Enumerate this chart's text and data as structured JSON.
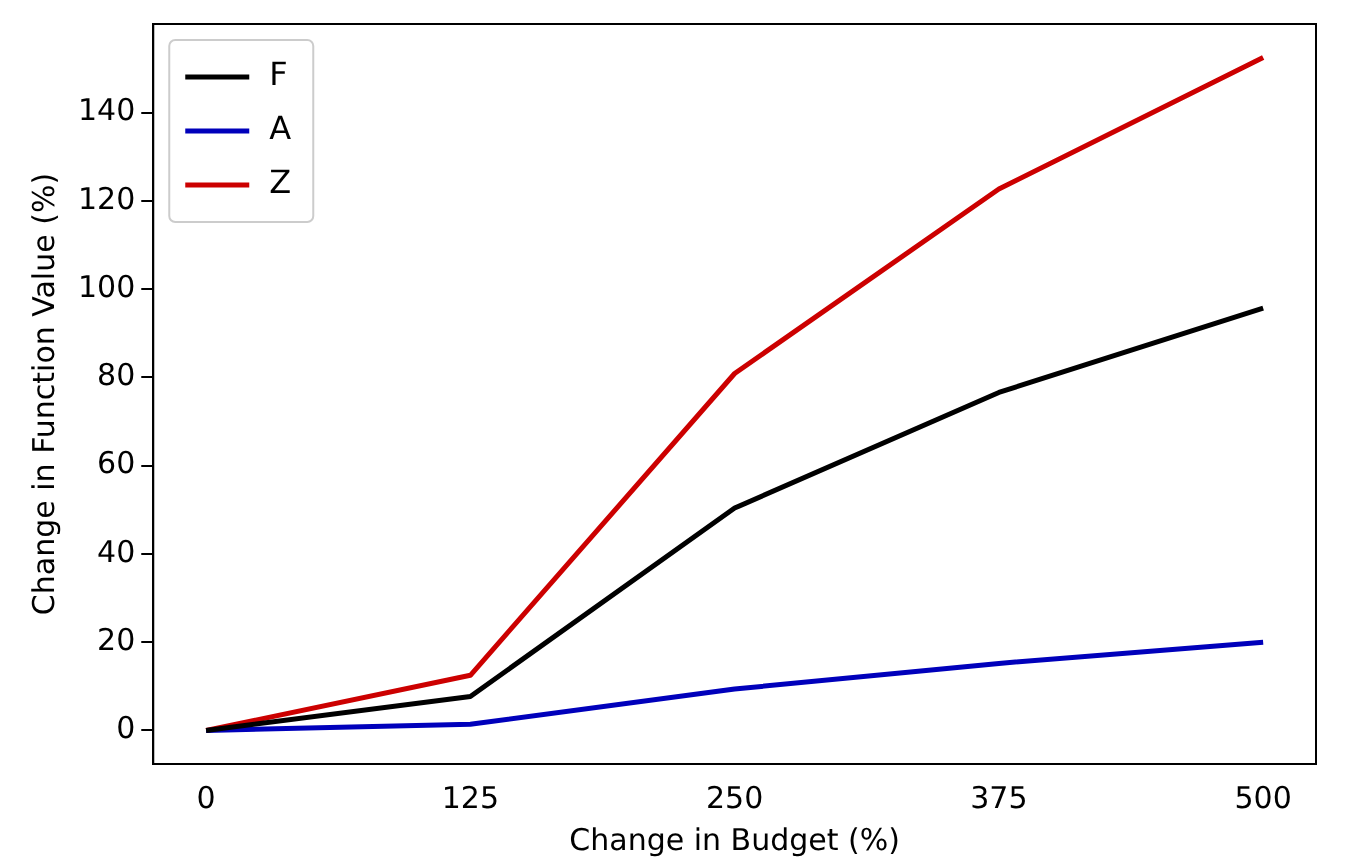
{
  "chart_data": {
    "type": "line",
    "xlabel": "Change in Budget (%)",
    "ylabel": "Change in Function Value (%)",
    "x": [
      0,
      125,
      250,
      375,
      500
    ],
    "series": [
      {
        "name": "F",
        "color": "#000000",
        "values": [
          0,
          7.7,
          50.4,
          76.6,
          95.7
        ]
      },
      {
        "name": "A",
        "color": "#0000bb",
        "values": [
          0,
          1.4,
          9.4,
          15.2,
          20
        ]
      },
      {
        "name": "Z",
        "color": "#cc0000",
        "values": [
          0,
          12.5,
          80.9,
          122.7,
          152.5
        ]
      }
    ],
    "xlim": [
      -25,
      525
    ],
    "xticks": [
      0,
      125,
      250,
      375,
      500
    ],
    "ylim": [
      -7.6,
      160.1
    ],
    "yticks": [
      0,
      20,
      40,
      60,
      80,
      100,
      120,
      140
    ],
    "grid": false,
    "legend": "top left",
    "marker": "none",
    "line_style": "solid"
  }
}
